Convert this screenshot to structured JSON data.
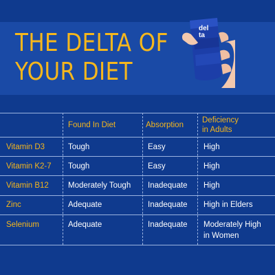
{
  "title": {
    "line1": "THE DELTA OF",
    "line2": "YOUR DIET"
  },
  "product": {
    "brand_line1": "del",
    "brand_line2": "ta"
  },
  "table": {
    "headers": {
      "found": "Found In Diet",
      "absorption": "Absorption",
      "deficiency_line1": "Deficiency",
      "deficiency_line2": "in Adults"
    },
    "rows": [
      {
        "nutrient": "Vitamin D3",
        "found": "Tough",
        "absorption": "Easy",
        "deficiency_line1": "High",
        "deficiency_line2": ""
      },
      {
        "nutrient": "Vitamin K2-7",
        "found": "Tough",
        "absorption": "Easy",
        "deficiency_line1": "High",
        "deficiency_line2": ""
      },
      {
        "nutrient": "Vitamin B12",
        "found": "Moderately Tough",
        "absorption": "Inadequate",
        "deficiency_line1": "High",
        "deficiency_line2": ""
      },
      {
        "nutrient": "Zinc",
        "found": "Adequate",
        "absorption": "Inadequate",
        "deficiency_line1": "High in Elders",
        "deficiency_line2": ""
      },
      {
        "nutrient": "Selenium",
        "found": "Adequate",
        "absorption": "Inadequate",
        "deficiency_line1": "Moderately High",
        "deficiency_line2": "in Women"
      }
    ]
  },
  "colors": {
    "background": "#0f3a8e",
    "header_band": "#1a4aa6",
    "accent": "#f6b71c",
    "text": "#ffffff",
    "rule": "#9bb3e0"
  }
}
